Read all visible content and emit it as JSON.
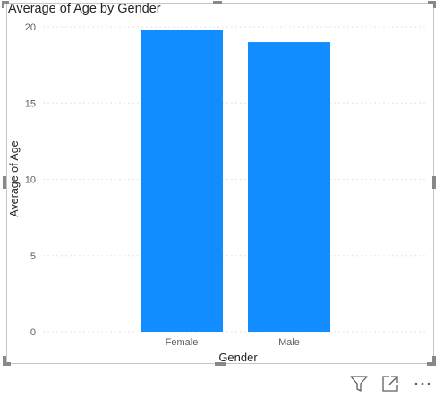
{
  "chart_data": {
    "type": "bar",
    "title": "Average of Age by Gender",
    "xlabel": "Gender",
    "ylabel": "Average of Age",
    "categories": [
      "Female",
      "Male"
    ],
    "values": [
      19.8,
      19.0
    ],
    "ylim": [
      0,
      20
    ],
    "yticks": [
      0,
      5,
      10,
      15,
      20
    ],
    "grid": true,
    "bar_color": "#118DFF",
    "grid_color": "#e6e6e6"
  },
  "toolbar": {
    "filter_icon": "filter-icon",
    "focus_icon": "focus-mode-icon",
    "more_icon": "more-options-icon"
  }
}
